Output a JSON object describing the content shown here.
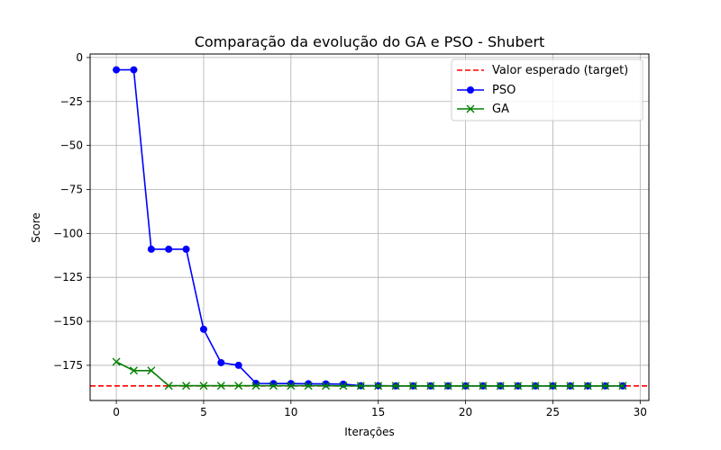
{
  "chart_data": {
    "type": "line",
    "title": "Comparação da evolução do GA e PSO - Shubert",
    "xlabel": "Iterações",
    "ylabel": "Score",
    "xlim": [
      -1.5,
      30.5
    ],
    "ylim": [
      -195,
      2
    ],
    "xticks": [
      0,
      5,
      10,
      15,
      20,
      25,
      30
    ],
    "yticks": [
      0,
      -25,
      -50,
      -75,
      -100,
      -125,
      -150,
      -175
    ],
    "grid": true,
    "legend_position": "top-right",
    "target": {
      "name": "Valor esperado (target)",
      "value": -186.73,
      "color": "#ff0000"
    },
    "series": [
      {
        "name": "PSO",
        "color": "#0000ff",
        "marker": "circle",
        "x": [
          0,
          1,
          2,
          3,
          4,
          5,
          6,
          7,
          8,
          9,
          10,
          11,
          12,
          13,
          14,
          15,
          16,
          17,
          18,
          19,
          20,
          21,
          22,
          23,
          24,
          25,
          26,
          27,
          28,
          29
        ],
        "values": [
          -7,
          -7,
          -109,
          -109,
          -109,
          -154.5,
          -173.5,
          -175,
          -185.3,
          -185.4,
          -185.4,
          -185.5,
          -185.6,
          -185.7,
          -186.6,
          -186.6,
          -186.7,
          -186.7,
          -186.7,
          -186.7,
          -186.7,
          -186.7,
          -186.7,
          -186.7,
          -186.7,
          -186.7,
          -186.7,
          -186.7,
          -186.7,
          -186.7
        ]
      },
      {
        "name": "GA",
        "color": "#008000",
        "marker": "x",
        "x": [
          0,
          1,
          2,
          3,
          4,
          5,
          6,
          7,
          8,
          9,
          10,
          11,
          12,
          13,
          14,
          15,
          16,
          17,
          18,
          19,
          20,
          21,
          22,
          23,
          24,
          25,
          26,
          27,
          28,
          29
        ],
        "values": [
          -173,
          -178,
          -178,
          -186.6,
          -186.6,
          -186.6,
          -186.6,
          -186.6,
          -186.6,
          -186.6,
          -186.6,
          -186.6,
          -186.6,
          -186.7,
          -186.7,
          -186.7,
          -186.7,
          -186.7,
          -186.7,
          -186.7,
          -186.7,
          -186.7,
          -186.7,
          -186.7,
          -186.7,
          -186.7,
          -186.7,
          -186.7,
          -186.7,
          -186.7
        ]
      }
    ]
  }
}
